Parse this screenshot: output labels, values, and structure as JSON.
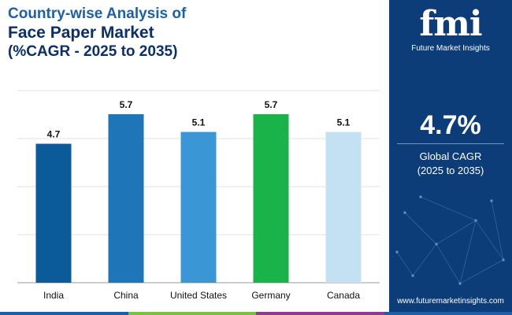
{
  "title": {
    "line1": "Country-wise Analysis of",
    "line2": "Face Paper Market",
    "line3": "(%CAGR - 2025 to 2035)"
  },
  "chart_data": {
    "type": "bar",
    "categories": [
      "India",
      "China",
      "United States",
      "Germany",
      "Canada"
    ],
    "values": [
      4.7,
      5.7,
      5.1,
      5.7,
      5.1
    ],
    "bar_colors": [
      "#0b5a99",
      "#1e75b7",
      "#3a96d5",
      "#19b34a",
      "#c4e1f4"
    ],
    "ylim": [
      0,
      6.5
    ],
    "grid": true,
    "data_labels": true
  },
  "panel": {
    "logo_text": "fmi",
    "logo_subtext": "Future Market Insights",
    "cagr_value": "4.7%",
    "cagr_label_line1": "Global CAGR",
    "cagr_label_line2": "(2025 to 2035)",
    "website": "www.futuremarketinsights.com"
  },
  "colors": {
    "panel_bg": "#0d3d78",
    "strip": [
      "#1f5fa8",
      "#7ac143",
      "#8e3a8e",
      "#1f5fa8"
    ]
  }
}
